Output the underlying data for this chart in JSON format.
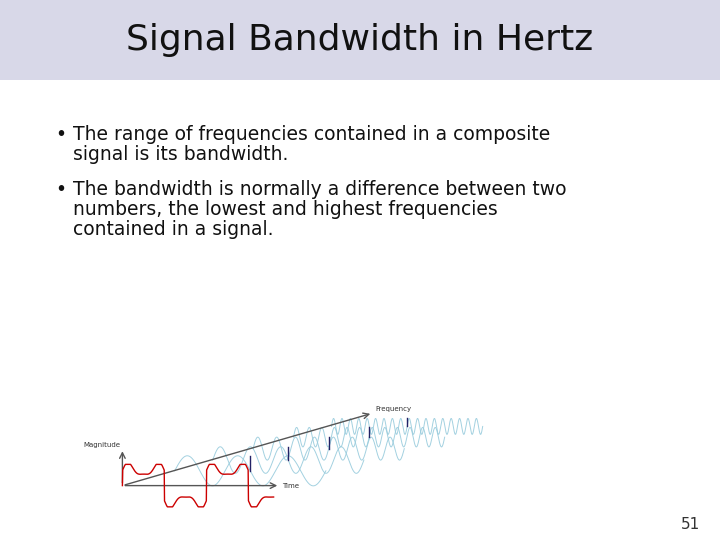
{
  "title": "Signal Bandwidth in Hertz",
  "title_bg_color": "#d8d8e8",
  "slide_bg_color": "#ffffff",
  "title_fontsize": 26,
  "bullet_fontsize": 13.5,
  "page_number": "51",
  "bullet1_line1": "The range of frequencies contained in a composite",
  "bullet1_line2": "signal is its bandwidth.",
  "bullet2_line1": "The bandwidth is normally a difference between two",
  "bullet2_line2": "numbers, the lowest and highest frequencies",
  "bullet2_line3": "contained in a signal."
}
